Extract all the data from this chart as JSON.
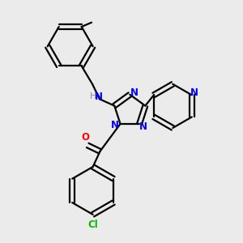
{
  "bg_color": "#ebebeb",
  "bond_color": "#000000",
  "N_color": "#0000ff",
  "O_color": "#ff0000",
  "Cl_color": "#00bb00",
  "line_width": 1.6,
  "font_size": 8.5,
  "figsize": [
    3.0,
    3.0
  ],
  "dpi": 100,
  "xlim": [
    0,
    10
  ],
  "ylim": [
    0,
    10
  ]
}
